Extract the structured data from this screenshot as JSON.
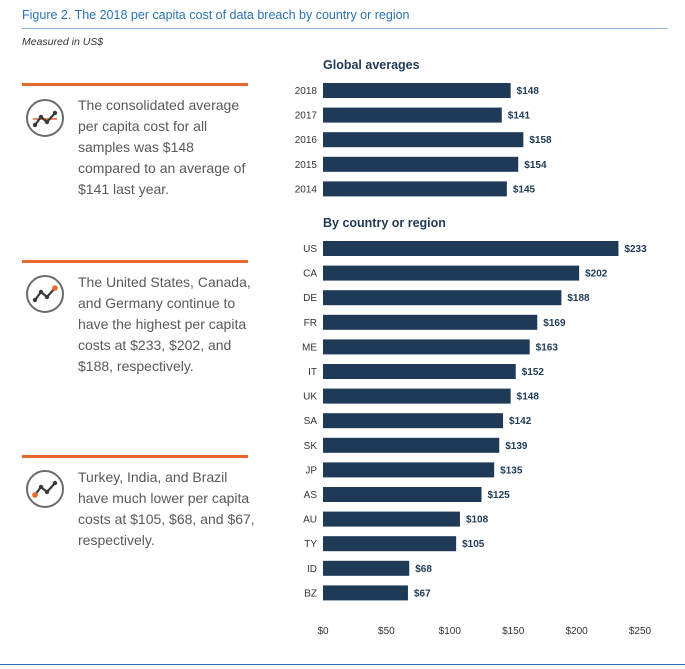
{
  "figure": {
    "title": "Figure 2. The 2018 per capita cost of data breach by country or region",
    "subtitle": "Measured in US$"
  },
  "callouts": [
    {
      "text": "The consolidated average per capita cost for all samples was $148 compared to an average of $141 last year.",
      "icon": "trend-line-icon"
    },
    {
      "text": "The United States, Canada, and Germany continue to have the highest per capita costs at $233, $202, and $188, respectively.",
      "icon": "trend-line-icon"
    },
    {
      "text": "Turkey, India, and Brazil have much lower per capita costs at $105, $68, and $67, respectively.",
      "icon": "trend-line-icon"
    }
  ],
  "colors": {
    "bar": "#1f3a56",
    "accent": "#e8692e",
    "title": "#2a72b5"
  },
  "chart_data": [
    {
      "type": "bar",
      "orientation": "horizontal",
      "title": "Global averages",
      "categories": [
        "2018",
        "2017",
        "2016",
        "2015",
        "2014"
      ],
      "values": [
        148,
        141,
        158,
        154,
        145
      ],
      "value_labels": [
        "$148",
        "$141",
        "$158",
        "$154",
        "$145"
      ],
      "xlim": [
        0,
        250
      ]
    },
    {
      "type": "bar",
      "orientation": "horizontal",
      "title": "By country or region",
      "categories": [
        "US",
        "CA",
        "DE",
        "FR",
        "ME",
        "IT",
        "UK",
        "SA",
        "SK",
        "JP",
        "AS",
        "AU",
        "TY",
        "ID",
        "BZ"
      ],
      "values": [
        233,
        202,
        188,
        169,
        163,
        152,
        148,
        142,
        139,
        135,
        125,
        108,
        105,
        68,
        67
      ],
      "value_labels": [
        "$233",
        "$202",
        "$188",
        "$169",
        "$163",
        "$152",
        "$148",
        "$142",
        "$139",
        "$135",
        "$125",
        "$108",
        "$105",
        "$68",
        "$67"
      ],
      "xlim": [
        0,
        250
      ],
      "xticks": [
        0,
        50,
        100,
        150,
        200,
        250
      ],
      "xtick_labels": [
        "$0",
        "$50",
        "$100",
        "$150",
        "$200",
        "$250"
      ]
    }
  ]
}
